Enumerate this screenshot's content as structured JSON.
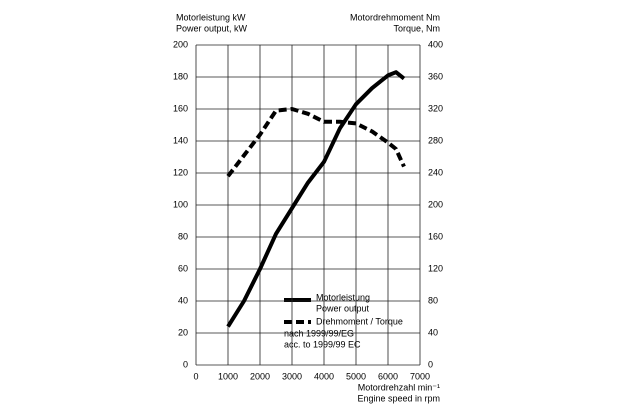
{
  "chart_data": {
    "type": "line",
    "left_title": [
      "Motorleistung kW",
      "Power output, kW"
    ],
    "right_title": [
      "Motordrehmoment Nm",
      "Torque, Nm"
    ],
    "xlabel": [
      "Motordrehzahl min⁻¹",
      "Engine speed in rpm"
    ],
    "x": [
      1000,
      1500,
      2000,
      2500,
      3000,
      3500,
      4000,
      4500,
      5000,
      5500,
      6000,
      6250,
      6500
    ],
    "series": [
      {
        "name": "Motorleistung",
        "name_2": "Power output",
        "color": "#000000",
        "dash": false,
        "axis": "y",
        "values": [
          24,
          40,
          60,
          82,
          98,
          114,
          127,
          148,
          163,
          173,
          181,
          183,
          179
        ]
      },
      {
        "name": "Drehmoment / Torque",
        "color": "#000000",
        "dash": true,
        "axis": "y2",
        "values": [
          236,
          262,
          288,
          318,
          320,
          314,
          304,
          304,
          302,
          292,
          278,
          270,
          248
        ]
      }
    ],
    "notes": [
      "nach 1999/99/EG",
      "acc. to 1999/99 EC"
    ],
    "xlim": [
      0,
      7000
    ],
    "xticks": [
      0,
      1000,
      2000,
      3000,
      4000,
      5000,
      6000,
      7000
    ],
    "ylim": [
      0,
      200
    ],
    "yticks": [
      0,
      20,
      40,
      60,
      80,
      100,
      120,
      140,
      160,
      180,
      200
    ],
    "y2lim": [
      0,
      400
    ],
    "y2ticks": [
      0,
      40,
      80,
      120,
      160,
      200,
      240,
      280,
      320,
      360,
      400
    ],
    "grid": true
  }
}
